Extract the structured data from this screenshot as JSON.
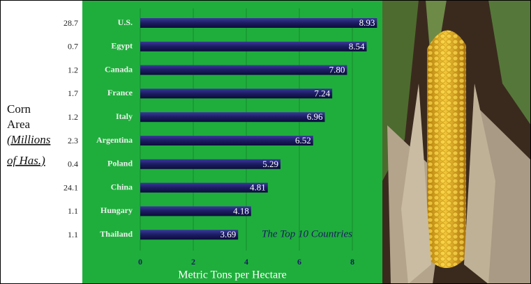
{
  "chart_data": {
    "type": "hbar",
    "categories": [
      "U.S.",
      "Egypt",
      "Canada",
      "France",
      "Italy",
      "Argentina",
      "Poland",
      "China",
      "Hungary",
      "Thailand"
    ],
    "values": [
      8.93,
      8.54,
      7.8,
      7.24,
      6.96,
      6.52,
      5.29,
      4.81,
      4.18,
      3.69
    ],
    "value_labels": [
      "8.93",
      "8.54",
      "7.80",
      "7.24",
      "6.96",
      "6.52",
      "5.29",
      "4.81",
      "4.18",
      "3.69"
    ],
    "color": "#1c1c62",
    "xlim": [
      0,
      9.1
    ],
    "xticks": [
      0,
      2,
      4,
      6,
      8
    ],
    "grid": true,
    "xlabel": "Metric Tons per Hectare",
    "annotation": "The Top 10 Countries",
    "side_label": [
      "Corn",
      "Area",
      "(Millions",
      " of Has.)"
    ],
    "side_values": [
      "28.7",
      "0.7",
      "1.2",
      "1.7",
      "1.2",
      "2.3",
      "0.4",
      "24.1",
      "1.1",
      "1.1"
    ]
  }
}
